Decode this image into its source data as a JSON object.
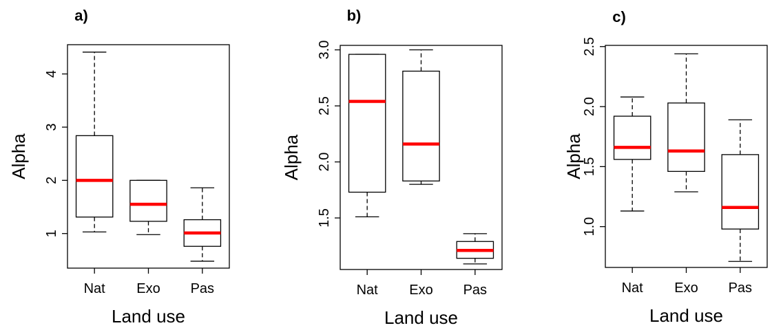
{
  "colors": {
    "median": "#ff0000",
    "box": "#000000",
    "background": "#ffffff"
  },
  "chart_data": [
    {
      "type": "boxplot",
      "panel_label": "a)",
      "xlabel": "Land use",
      "ylabel": "Alpha",
      "categories": [
        "Nat",
        "Exo",
        "Pas"
      ],
      "ylim": [
        0.35,
        4.55
      ],
      "yticks": [
        1,
        2,
        3,
        4
      ],
      "ytick_labels": [
        "1",
        "2",
        "3",
        "4"
      ],
      "boxes": [
        {
          "category": "Nat",
          "whisker_low": 1.03,
          "q1": 1.31,
          "median": 2.0,
          "q3": 2.84,
          "whisker_high": 4.41
        },
        {
          "category": "Exo",
          "whisker_low": 0.98,
          "q1": 1.23,
          "median": 1.55,
          "q3": 2.0,
          "whisker_high": 2.0
        },
        {
          "category": "Pas",
          "whisker_low": 0.48,
          "q1": 0.76,
          "median": 1.01,
          "q3": 1.26,
          "whisker_high": 1.86
        }
      ]
    },
    {
      "type": "boxplot",
      "panel_label": "b)",
      "xlabel": "Land use",
      "ylabel": "Alpha",
      "categories": [
        "Nat",
        "Exo",
        "Pas"
      ],
      "ylim": [
        1.04,
        3.04
      ],
      "yticks": [
        1.5,
        2.0,
        2.5,
        3.0
      ],
      "ytick_labels": [
        "1.5",
        "2.0",
        "2.5",
        "3.0"
      ],
      "boxes": [
        {
          "category": "Nat",
          "whisker_low": 1.51,
          "q1": 1.73,
          "median": 2.54,
          "q3": 2.96,
          "whisker_high": 2.96
        },
        {
          "category": "Exo",
          "whisker_low": 1.8,
          "q1": 1.83,
          "median": 2.16,
          "q3": 2.81,
          "whisker_high": 3.0
        },
        {
          "category": "Pas",
          "whisker_low": 1.09,
          "q1": 1.14,
          "median": 1.21,
          "q3": 1.29,
          "whisker_high": 1.36
        }
      ]
    },
    {
      "type": "boxplot",
      "panel_label": "c)",
      "xlabel": "Land use",
      "ylabel": "Alpha",
      "categories": [
        "Nat",
        "Exo",
        "Pas"
      ],
      "ylim": [
        0.66,
        2.51
      ],
      "yticks": [
        1.0,
        1.5,
        2.0,
        2.5
      ],
      "ytick_labels": [
        "1.0",
        "1.5",
        "2.0",
        "2.5"
      ],
      "boxes": [
        {
          "category": "Nat",
          "whisker_low": 1.13,
          "q1": 1.56,
          "median": 1.66,
          "q3": 1.92,
          "whisker_high": 2.08
        },
        {
          "category": "Exo",
          "whisker_low": 1.29,
          "q1": 1.46,
          "median": 1.63,
          "q3": 2.03,
          "whisker_high": 2.44
        },
        {
          "category": "Pas",
          "whisker_low": 0.71,
          "q1": 0.98,
          "median": 1.16,
          "q3": 1.6,
          "whisker_high": 1.89
        }
      ]
    }
  ]
}
